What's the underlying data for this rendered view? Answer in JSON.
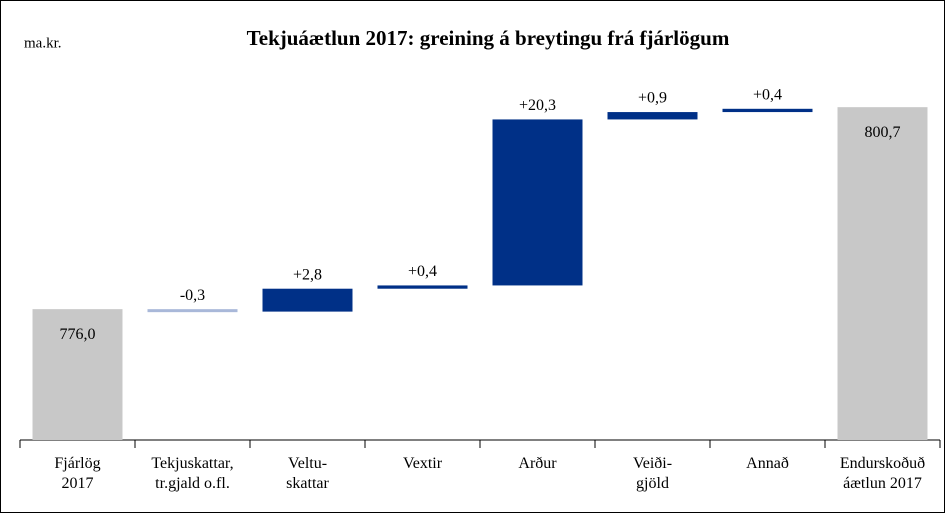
{
  "chart_data": {
    "type": "waterfall",
    "title": "Tekjuáætlun 2017: greining á breytingu frá fjárlögum",
    "y_label": "ma.kr.",
    "categories": [
      "Fjárlög\n2017",
      "Tekjuskattar,\ntr.gjald o.fl.",
      "Veltu-\nskattar",
      "Vextir",
      "Arður",
      "Veiði-\ngjöld",
      "Annað",
      "Endurskoðuð\náætlun 2017"
    ],
    "values": [
      776.0,
      -0.3,
      2.8,
      0.4,
      20.3,
      0.9,
      0.4,
      800.7
    ],
    "value_labels": [
      "776,0",
      "-0,3",
      "+2,8",
      "+0,4",
      "+20,3",
      "+0,9",
      "+0,4",
      "800,7"
    ],
    "totals": [
      0,
      7
    ],
    "colors": {
      "total": "#c8c8c8",
      "increase": "#003087",
      "decrease": "#a9b8d9"
    },
    "ylim": [
      760,
      805
    ]
  }
}
